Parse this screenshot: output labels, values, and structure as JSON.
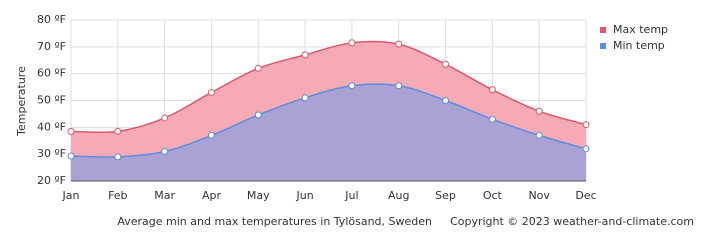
{
  "chart_data": {
    "type": "area-line",
    "y_label": "Temperature",
    "caption": "Average min and max temperatures in Tylösand, Sweden",
    "copyright": "Copyright © 2023  weather-and-climate.com",
    "categories": [
      "Jan",
      "Feb",
      "Mar",
      "Apr",
      "May",
      "Jun",
      "Jul",
      "Aug",
      "Sep",
      "Oct",
      "Nov",
      "Dec"
    ],
    "series": [
      {
        "name": "Max temp",
        "color": "#e0566a",
        "fill": "#f5aab5",
        "values": [
          38.5,
          38.5,
          43.5,
          53,
          62,
          67,
          71.5,
          71,
          63.5,
          54,
          46,
          41
        ]
      },
      {
        "name": "Min temp",
        "color": "#5b8de0",
        "fill": "#a9a2d3",
        "values": [
          29.3,
          29,
          31,
          37,
          44.6,
          51,
          55.5,
          55.5,
          50,
          43,
          37,
          32
        ]
      }
    ],
    "ylim": [
      20,
      80
    ],
    "yticks": [
      {
        "value": 20,
        "label": "20 ºF"
      },
      {
        "value": 30,
        "label": "30 ºF"
      },
      {
        "value": 40,
        "label": "40 ºF"
      },
      {
        "value": 50,
        "label": "50 ºF"
      },
      {
        "value": 60,
        "label": "60 ºF"
      },
      {
        "value": 70,
        "label": "70 ºF"
      },
      {
        "value": 80,
        "label": "80 ºF"
      }
    ],
    "grid": true
  }
}
